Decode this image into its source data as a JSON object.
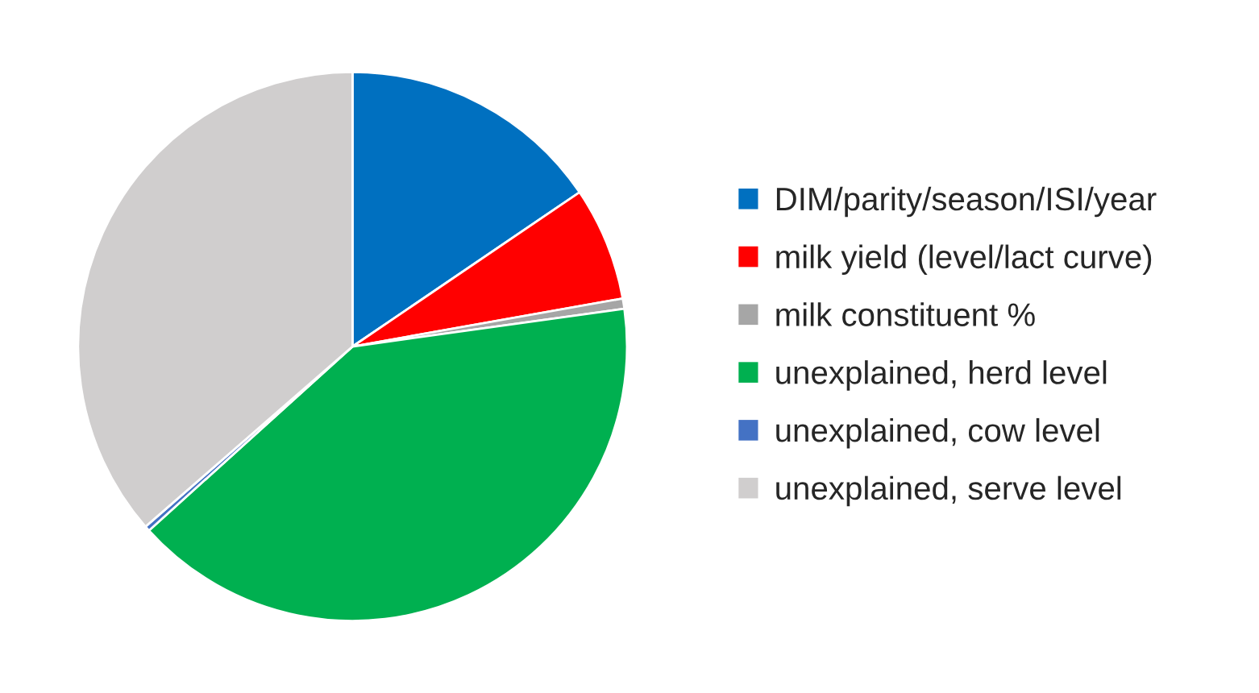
{
  "chart_data": {
    "type": "pie",
    "categories": [
      "DIM/parity/season/ISI/year",
      "milk yield (level/lact curve)",
      "milk constituent %",
      "unexplained, herd level",
      "unexplained, cow level",
      "unexplained, serve level"
    ],
    "values": [
      15.5,
      6.7,
      0.6,
      40.5,
      0.3,
      36.4
    ],
    "colors": [
      "#0070c0",
      "#ff0000",
      "#a6a6a6",
      "#00b050",
      "#4472c4",
      "#d0cece"
    ],
    "legend": "right"
  }
}
